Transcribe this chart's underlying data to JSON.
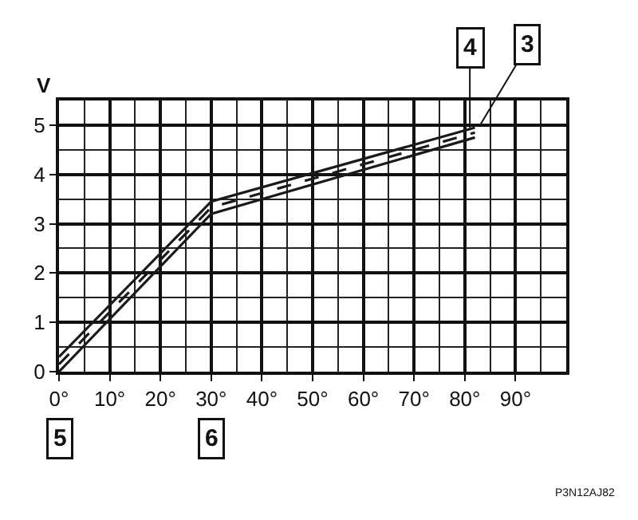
{
  "chart_data": {
    "type": "line",
    "ylabel": "V",
    "series": [
      {
        "x": [
          0,
          30,
          82
        ],
        "values": [
          0.3,
          3.45,
          4.95
        ],
        "color": "#1a1a1a",
        "line_style": "solid"
      },
      {
        "x": [
          0,
          30,
          82
        ],
        "values": [
          0.15,
          3.33,
          4.85
        ],
        "color": "#1a1a1a",
        "line_style": "dashed"
      },
      {
        "x": [
          0,
          30,
          82
        ],
        "values": [
          0,
          3.2,
          4.75
        ],
        "color": "#1a1a1a",
        "line_style": "solid"
      }
    ],
    "xlim": [
      0,
      100
    ],
    "xticks": [
      {
        "value": 0,
        "label": "0°"
      },
      {
        "value": 10,
        "label": "10°"
      },
      {
        "value": 20,
        "label": "20°"
      },
      {
        "value": 30,
        "label": "30°"
      },
      {
        "value": 40,
        "label": "40°"
      },
      {
        "value": 50,
        "label": "50°"
      },
      {
        "value": 60,
        "label": "60°"
      },
      {
        "value": 70,
        "label": "70°"
      },
      {
        "value": 80,
        "label": "80°"
      },
      {
        "value": 90,
        "label": "90°"
      }
    ],
    "ylim": [
      0,
      5.5
    ],
    "yticks": [
      0,
      1,
      2,
      3,
      4,
      5
    ],
    "grid": true,
    "marker": "none",
    "annotations": [
      {
        "text": "4",
        "x": 81,
        "y": 4.95
      },
      {
        "text": "3",
        "x": 83,
        "y": 5.0
      },
      "5",
      "6",
      "P3N12AJ82"
    ]
  }
}
